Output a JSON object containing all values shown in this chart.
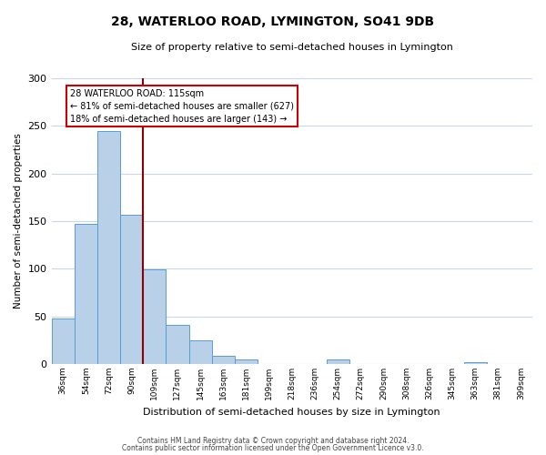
{
  "title": "28, WATERLOO ROAD, LYMINGTON, SO41 9DB",
  "subtitle": "Size of property relative to semi-detached houses in Lymington",
  "xlabel": "Distribution of semi-detached houses by size in Lymington",
  "ylabel": "Number of semi-detached properties",
  "bin_labels": [
    "36sqm",
    "54sqm",
    "72sqm",
    "90sqm",
    "109sqm",
    "127sqm",
    "145sqm",
    "163sqm",
    "181sqm",
    "199sqm",
    "218sqm",
    "236sqm",
    "254sqm",
    "272sqm",
    "290sqm",
    "308sqm",
    "326sqm",
    "345sqm",
    "363sqm",
    "381sqm",
    "399sqm"
  ],
  "bin_values": [
    48,
    147,
    245,
    157,
    99,
    41,
    25,
    9,
    5,
    0,
    0,
    0,
    5,
    0,
    0,
    0,
    0,
    0,
    2,
    0,
    0
  ],
  "bar_color": "#b8d0e8",
  "bar_edge_color": "#5b9bd5",
  "property_bin_index": 4,
  "annotation_title": "28 WATERLOO ROAD: 115sqm",
  "annotation_line1": "← 81% of semi-detached houses are smaller (627)",
  "annotation_line2": "18% of semi-detached houses are larger (143) →",
  "vline_color": "#8b0000",
  "annotation_box_color": "#ffffff",
  "annotation_box_edge_color": "#cc0000",
  "ylim": [
    0,
    300
  ],
  "yticks": [
    0,
    50,
    100,
    150,
    200,
    250,
    300
  ],
  "footnote1": "Contains HM Land Registry data © Crown copyright and database right 2024.",
  "footnote2": "Contains public sector information licensed under the Open Government Licence v3.0.",
  "background_color": "#ffffff",
  "grid_color": "#c8d8e8"
}
